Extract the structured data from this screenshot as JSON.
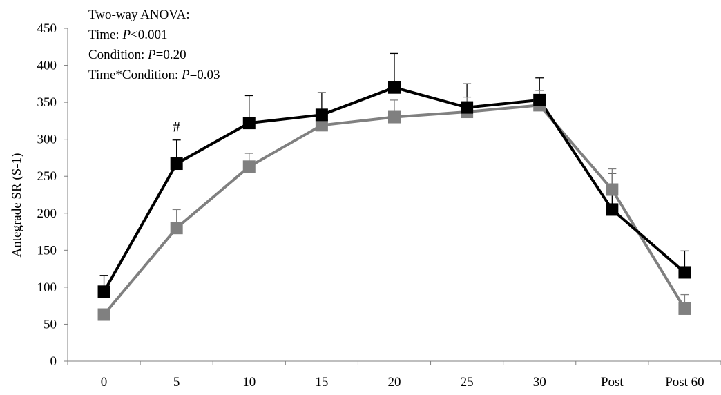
{
  "chart_data": {
    "type": "line",
    "categories": [
      "0",
      "5",
      "10",
      "15",
      "20",
      "25",
      "30",
      "Post",
      "Post 60"
    ],
    "series": [
      {
        "color": "#000000",
        "values": [
          94,
          267,
          322,
          333,
          370,
          343,
          353,
          205,
          120
        ],
        "error": [
          22,
          32,
          37,
          30,
          46,
          32,
          30,
          49,
          29
        ]
      },
      {
        "color": "#808080",
        "values": [
          63,
          180,
          263,
          319,
          330,
          337,
          346,
          232,
          71
        ],
        "error": [
          0,
          25,
          18,
          0,
          23,
          20,
          20,
          28,
          19
        ]
      }
    ],
    "xlabel": "",
    "ylabel": "Antegrade SR (S-1)",
    "ylim": [
      0,
      450
    ],
    "yticks": [
      0,
      50,
      100,
      150,
      200,
      250,
      300,
      350,
      400,
      450
    ],
    "grid": false,
    "annotations": {
      "stats": {
        "line1": "Two-way ANOVA:",
        "line2_label": "Time: ",
        "line2_p": "P",
        "line2_value": "<0.001",
        "line3_label": "Condition: ",
        "line3_p": "P",
        "line3_value": "=0.20",
        "line4_label": "Time*Condition: ",
        "line4_p": "P",
        "line4_value": "=0.03"
      },
      "significance": {
        "category": "5",
        "symbol": "#"
      }
    }
  }
}
